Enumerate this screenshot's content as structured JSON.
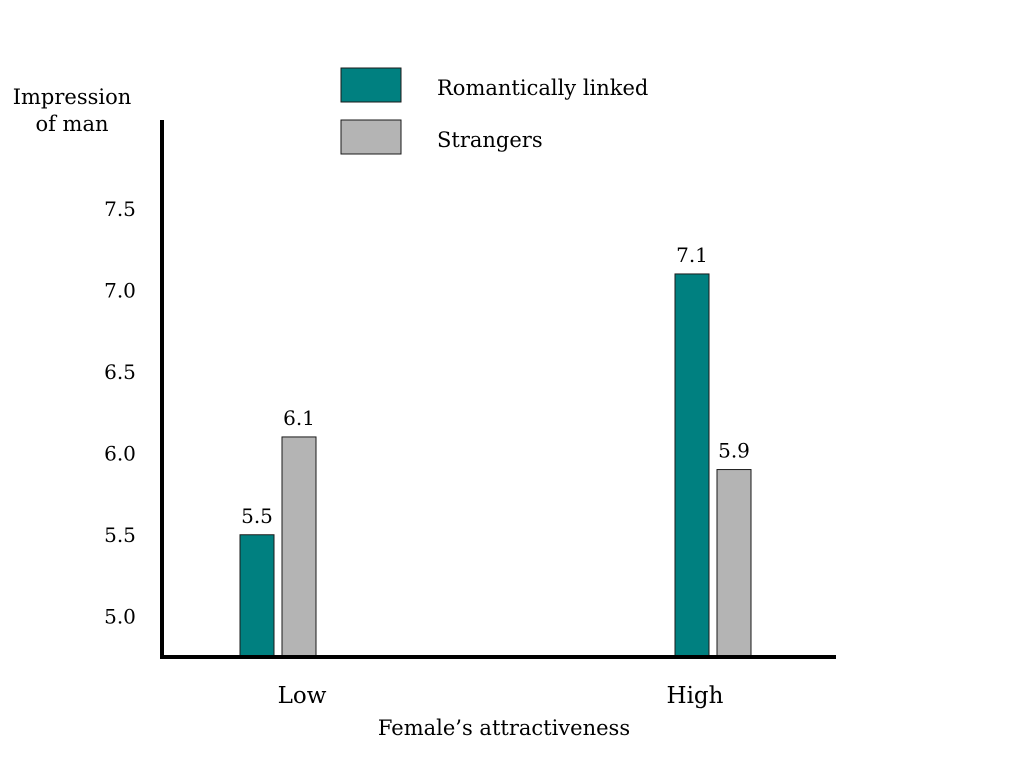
{
  "chart_data": {
    "type": "bar",
    "categories": [
      "Low",
      "High"
    ],
    "series": [
      {
        "name": "Romantically linked",
        "values": [
          5.5,
          7.1
        ],
        "labels": [
          "5.5",
          "7.1"
        ],
        "color": "#008080"
      },
      {
        "name": "Strangers",
        "values": [
          6.1,
          5.9
        ],
        "labels": [
          "6.1",
          "5.9"
        ],
        "color": "#b4b4b4"
      }
    ],
    "ylabel_lines": [
      "Impression",
      "of man"
    ],
    "xlabel": "Female’s attractiveness",
    "yticks": [
      5.0,
      5.5,
      6.0,
      6.5,
      7.0,
      7.5
    ],
    "ytick_labels": [
      "5.0",
      "5.5",
      "6.0",
      "6.5",
      "7.0",
      "7.5"
    ],
    "ylim": [
      4.75,
      8.0
    ],
    "legend_position": "top-center",
    "grid": false
  }
}
